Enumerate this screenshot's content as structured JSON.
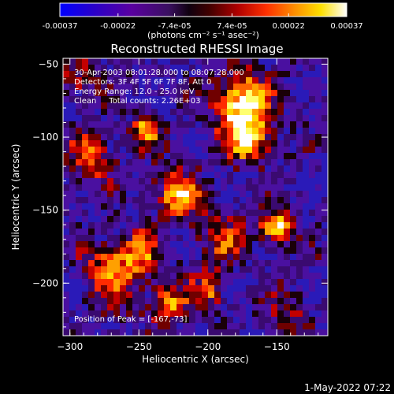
{
  "colorbar": {
    "tick_labels": [
      "-0.00037",
      "-0.00022",
      "-7.4e-05",
      "7.4e-05",
      "0.00022",
      "0.00037"
    ],
    "tick_values": [
      -0.00037,
      -0.00022,
      -7.4e-05,
      7.4e-05,
      0.00022,
      0.00037
    ],
    "range": [
      -0.00037,
      0.00037
    ],
    "unit_label": "(photons cm⁻² s⁻¹ asec⁻²)",
    "colormap": [
      "#0000ff",
      "#000000",
      "#ff2200",
      "#ffdd00",
      "#ffffff"
    ]
  },
  "chart_data": {
    "type": "heatmap",
    "title": "Reconstructed RHESSI Image",
    "xlabel": "Heliocentric X (arcsec)",
    "ylabel": "Heliocentric Y (arcsec)",
    "xlim": [
      -305,
      -113
    ],
    "ylim": [
      -236,
      -46
    ],
    "x_ticks": [
      -300,
      -250,
      -200,
      -150
    ],
    "x_tick_labels": [
      "−300",
      "−250",
      "−200",
      "−150"
    ],
    "y_ticks": [
      -50,
      -100,
      -150,
      -200
    ],
    "y_tick_labels": [
      "−50",
      "−100",
      "−150",
      "−200"
    ],
    "annotations": [
      "30-Apr-2003 08:01:28.000 to 08:07:28.000",
      "Detectors: 3F 4F 5F 6F 7F 8F, Att 0",
      "Energy Range: 12.0 - 25.0 keV",
      "Clean     Total counts: 2.26E+03"
    ],
    "peak_label": "Position of Peak = [-167,-73]",
    "peak_position": [
      -167,
      -73
    ],
    "bright_sources": [
      {
        "x": -175,
        "y": -75,
        "level": 1.0,
        "spread": 14
      },
      {
        "x": -170,
        "y": -100,
        "level": 0.85,
        "spread": 12
      },
      {
        "x": -150,
        "y": -162,
        "level": 0.95,
        "spread": 8
      },
      {
        "x": -222,
        "y": -140,
        "level": 0.75,
        "spread": 12
      },
      {
        "x": -270,
        "y": -192,
        "level": 0.65,
        "spread": 14
      },
      {
        "x": -250,
        "y": -180,
        "level": 0.6,
        "spread": 10
      },
      {
        "x": -230,
        "y": -215,
        "level": 0.7,
        "spread": 10
      },
      {
        "x": -200,
        "y": -205,
        "level": 0.55,
        "spread": 9
      },
      {
        "x": -285,
        "y": -115,
        "level": 0.55,
        "spread": 12
      },
      {
        "x": -245,
        "y": -95,
        "level": 0.7,
        "spread": 8
      },
      {
        "x": -190,
        "y": -170,
        "level": 0.5,
        "spread": 12
      },
      {
        "x": -295,
        "y": -60,
        "level": 0.45,
        "spread": 10
      },
      {
        "x": -140,
        "y": -220,
        "level": 0.4,
        "spread": 10
      }
    ]
  },
  "footer": {
    "timestamp": "1-May-2022 07:22"
  }
}
